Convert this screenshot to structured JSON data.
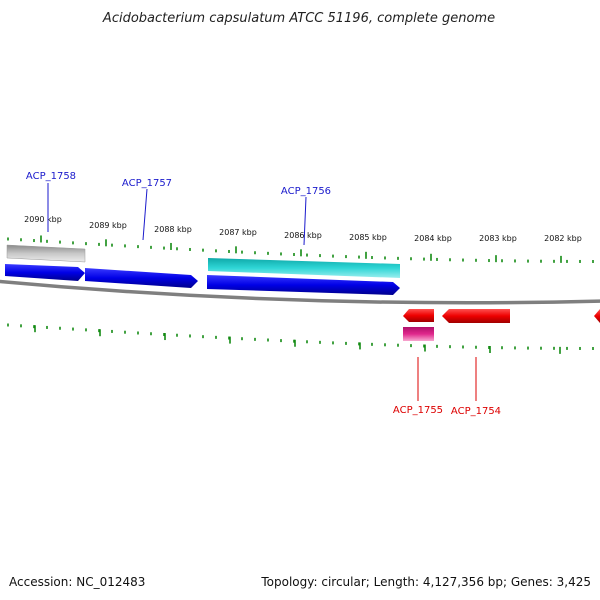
{
  "title": "Acidobacterium capsulatum ATCC 51196, complete genome",
  "footer": {
    "accession": "Accession: NC_012483",
    "summary": "Topology: circular; Length: 4,127,356 bp; Genes: 3,425"
  },
  "ticks": {
    "labels": [
      "2090 kbp",
      "2089 kbp",
      "2088 kbp",
      "2087 kbp",
      "2086 kbp",
      "2085 kbp",
      "2084 kbp",
      "2083 kbp",
      "2082 kbp"
    ]
  },
  "genes": {
    "forward": [
      "ACP_1758",
      "ACP_1757",
      "ACP_1756"
    ],
    "reverse": [
      "ACP_1755",
      "ACP_1754"
    ]
  },
  "colors": {
    "forward_gene": "#0000e6",
    "forward_label": "#1a1acc",
    "reverse_gene": "#ee0000",
    "reverse_label": "#dd0000",
    "rna_gene": "#22c8c8",
    "pseudo_gene": "#c8c8c8",
    "magenta_gene": "#e0288c",
    "tick": "#138a13",
    "backbone": "#7f7f7f"
  }
}
